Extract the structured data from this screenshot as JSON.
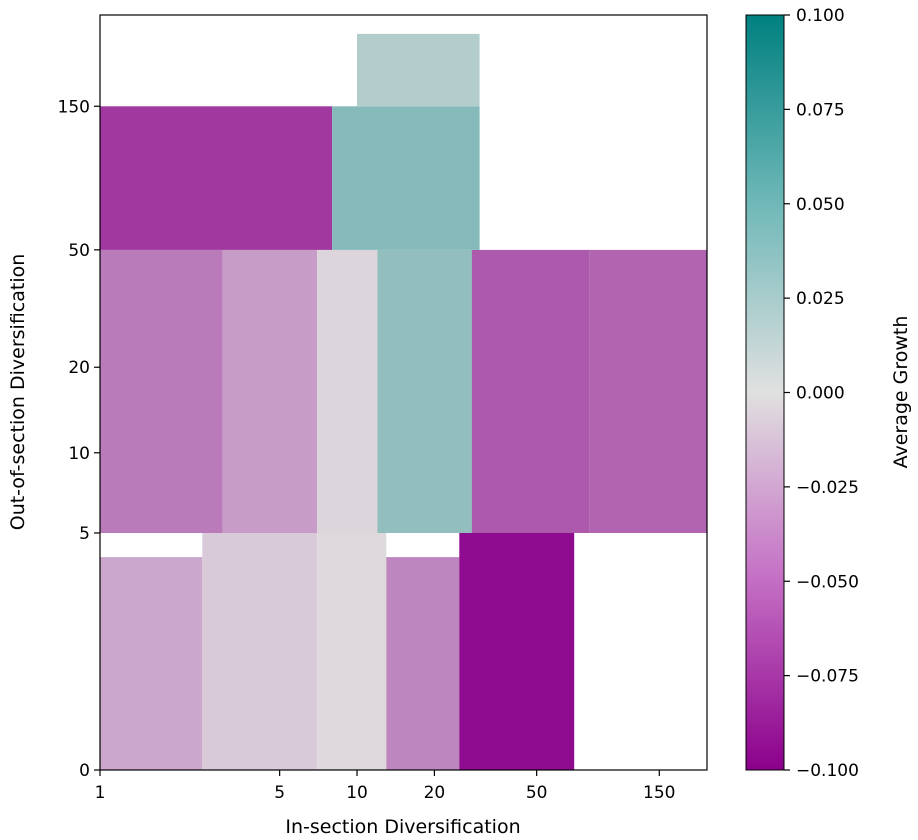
{
  "chart_data": {
    "type": "heatmap",
    "title": "",
    "xlabel": "In-section Diversification",
    "ylabel": "Out-of-section Diversification",
    "x_scale": "log",
    "y_scale": "log",
    "xlim": [
      1,
      230
    ],
    "ylim": [
      0,
      300
    ],
    "x_ticks": [
      {
        "value": 1,
        "label": "1"
      },
      {
        "value": 5,
        "label": "5"
      },
      {
        "value": 10,
        "label": "10"
      },
      {
        "value": 20,
        "label": "20"
      },
      {
        "value": 50,
        "label": "50"
      },
      {
        "value": 150,
        "label": "150"
      }
    ],
    "y_ticks": [
      {
        "value": 0,
        "label": "0"
      },
      {
        "value": 5,
        "label": "5"
      },
      {
        "value": 10,
        "label": "10"
      },
      {
        "value": 20,
        "label": "20"
      },
      {
        "value": 50,
        "label": "50"
      },
      {
        "value": 150,
        "label": "150"
      }
    ],
    "colorbar": {
      "label": "Average Growth",
      "vmin": -0.1,
      "vmax": 0.1,
      "ticks": [
        {
          "value": 0.1,
          "label": "0.100"
        },
        {
          "value": 0.075,
          "label": "0.075"
        },
        {
          "value": 0.05,
          "label": "0.050"
        },
        {
          "value": 0.025,
          "label": "0.025"
        },
        {
          "value": 0.0,
          "label": "0.000"
        },
        {
          "value": -0.025,
          "label": "−0.025"
        },
        {
          "value": -0.05,
          "label": "−0.050"
        },
        {
          "value": -0.075,
          "label": "−0.075"
        },
        {
          "value": -0.1,
          "label": "−0.100"
        }
      ],
      "colors": {
        "low": "#8b008b",
        "mid": "#e0e0e0",
        "high": "#008080"
      }
    },
    "grid": false,
    "regions": [
      {
        "x": [
          1,
          2.5
        ],
        "y": [
          0,
          4
        ],
        "value": -0.025
      },
      {
        "x": [
          2.5,
          7
        ],
        "y": [
          0,
          5
        ],
        "value": -0.01
      },
      {
        "x": [
          7,
          13
        ],
        "y": [
          0,
          5
        ],
        "value": -0.003
      },
      {
        "x": [
          1,
          3
        ],
        "y": [
          5,
          50
        ],
        "value": -0.045
      },
      {
        "x": [
          3,
          7
        ],
        "y": [
          5,
          50
        ],
        "value": -0.03
      },
      {
        "x": [
          7,
          12
        ],
        "y": [
          5,
          50
        ],
        "value": -0.005
      },
      {
        "x": [
          12,
          28
        ],
        "y": [
          5,
          50
        ],
        "value": 0.035
      },
      {
        "x": [
          13,
          25
        ],
        "y": [
          0,
          4
        ],
        "value": -0.04
      },
      {
        "x": [
          25,
          70
        ],
        "y": [
          0,
          5
        ],
        "value": -0.095
      },
      {
        "x": [
          28,
          80
        ],
        "y": [
          5,
          50
        ],
        "value": -0.06
      },
      {
        "x": [
          1,
          8
        ],
        "y": [
          50,
          150
        ],
        "value": -0.075
      },
      {
        "x": [
          8,
          30
        ],
        "y": [
          50,
          150
        ],
        "value": 0.04
      },
      {
        "x": [
          10,
          30
        ],
        "y": [
          150,
          260
        ],
        "value": 0.02
      },
      {
        "x": [
          80,
          230
        ],
        "y": [
          5,
          50
        ],
        "value": -0.055
      }
    ]
  }
}
